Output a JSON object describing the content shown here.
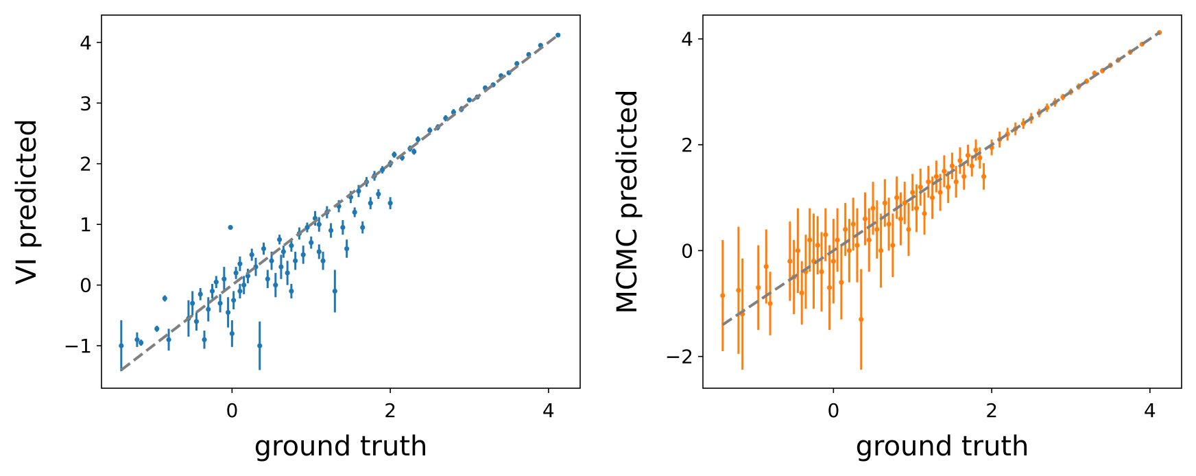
{
  "chart_data": [
    {
      "type": "scatter",
      "xlabel": "ground truth",
      "ylabel": "VI predicted",
      "xlim": [
        -1.65,
        4.4
      ],
      "ylim": [
        -1.7,
        4.45
      ],
      "xticks": [
        0,
        2,
        4
      ],
      "yticks": [
        -1,
        0,
        1,
        2,
        3,
        4
      ],
      "x_tick_labels": [
        "0",
        "2",
        "4"
      ],
      "y_tick_labels": [
        "−1",
        "0",
        "1",
        "2",
        "3",
        "4"
      ],
      "grid": false,
      "color": "#1f77b4",
      "identity_line": {
        "from": [
          -1.4,
          -1.4
        ],
        "to": [
          4.12,
          4.12
        ],
        "color": "#808080",
        "style": "dashed"
      },
      "series": [
        {
          "points": [
            {
              "x": -1.4,
              "y": -1.0,
              "err": 0.42
            },
            {
              "x": -1.2,
              "y": -0.9,
              "err": 0.12
            },
            {
              "x": -1.15,
              "y": -0.95,
              "err": 0.05
            },
            {
              "x": -0.95,
              "y": -0.72,
              "err": 0.05
            },
            {
              "x": -0.85,
              "y": -0.22,
              "err": 0.05
            },
            {
              "x": -0.8,
              "y": -0.9,
              "err": 0.18
            },
            {
              "x": -0.55,
              "y": -0.55,
              "err": 0.3
            },
            {
              "x": -0.5,
              "y": -0.3,
              "err": 0.2
            },
            {
              "x": -0.45,
              "y": -0.6,
              "err": 0.15
            },
            {
              "x": -0.4,
              "y": -0.15,
              "err": 0.1
            },
            {
              "x": -0.35,
              "y": -0.9,
              "err": 0.15
            },
            {
              "x": -0.3,
              "y": -0.4,
              "err": 0.2
            },
            {
              "x": -0.25,
              "y": -0.1,
              "err": 0.12
            },
            {
              "x": -0.2,
              "y": 0.05,
              "err": 0.1
            },
            {
              "x": -0.15,
              "y": -0.3,
              "err": 0.15
            },
            {
              "x": -0.1,
              "y": 0.1,
              "err": 0.2
            },
            {
              "x": -0.05,
              "y": -0.45,
              "err": 0.25
            },
            {
              "x": -0.02,
              "y": 0.95,
              "err": 0.03
            },
            {
              "x": 0.0,
              "y": -0.8,
              "err": 0.22
            },
            {
              "x": 0.02,
              "y": -0.25,
              "err": 0.15
            },
            {
              "x": 0.05,
              "y": 0.2,
              "err": 0.1
            },
            {
              "x": 0.1,
              "y": 0.35,
              "err": 0.12
            },
            {
              "x": 0.1,
              "y": -0.1,
              "err": 0.12
            },
            {
              "x": 0.15,
              "y": 0.0,
              "err": 0.15
            },
            {
              "x": 0.2,
              "y": 0.15,
              "err": 0.12
            },
            {
              "x": 0.25,
              "y": 0.5,
              "err": 0.1
            },
            {
              "x": 0.3,
              "y": 0.3,
              "err": 0.15
            },
            {
              "x": 0.35,
              "y": -1.0,
              "err": 0.4
            },
            {
              "x": 0.4,
              "y": 0.6,
              "err": 0.1
            },
            {
              "x": 0.45,
              "y": 0.1,
              "err": 0.15
            },
            {
              "x": 0.5,
              "y": 0.4,
              "err": 0.15
            },
            {
              "x": 0.55,
              "y": 0.0,
              "err": 0.2
            },
            {
              "x": 0.6,
              "y": 0.75,
              "err": 0.08
            },
            {
              "x": 0.62,
              "y": 0.3,
              "err": 0.2
            },
            {
              "x": 0.65,
              "y": 0.55,
              "err": 0.1
            },
            {
              "x": 0.7,
              "y": 0.2,
              "err": 0.2
            },
            {
              "x": 0.75,
              "y": 0.65,
              "err": 0.1
            },
            {
              "x": 0.75,
              "y": -0.1,
              "err": 0.12
            },
            {
              "x": 0.8,
              "y": 0.4,
              "err": 0.15
            },
            {
              "x": 0.85,
              "y": 0.85,
              "err": 0.1
            },
            {
              "x": 0.9,
              "y": 0.5,
              "err": 0.15
            },
            {
              "x": 0.95,
              "y": 0.95,
              "err": 0.08
            },
            {
              "x": 1.0,
              "y": 0.7,
              "err": 0.1
            },
            {
              "x": 1.05,
              "y": 1.1,
              "err": 0.12
            },
            {
              "x": 1.1,
              "y": 0.55,
              "err": 0.12
            },
            {
              "x": 1.1,
              "y": 1.0,
              "err": 0.12
            },
            {
              "x": 1.15,
              "y": 0.4,
              "err": 0.15
            },
            {
              "x": 1.2,
              "y": 1.2,
              "err": 0.1
            },
            {
              "x": 1.25,
              "y": 0.9,
              "err": 0.12
            },
            {
              "x": 1.3,
              "y": -0.1,
              "err": 0.35
            },
            {
              "x": 1.35,
              "y": 1.3,
              "err": 0.1
            },
            {
              "x": 1.4,
              "y": 0.95,
              "err": 0.12
            },
            {
              "x": 1.45,
              "y": 0.6,
              "err": 0.15
            },
            {
              "x": 1.5,
              "y": 1.45,
              "err": 0.1
            },
            {
              "x": 1.55,
              "y": 1.2,
              "err": 0.08
            },
            {
              "x": 1.6,
              "y": 1.55,
              "err": 0.1
            },
            {
              "x": 1.65,
              "y": 0.95,
              "err": 0.1
            },
            {
              "x": 1.7,
              "y": 1.7,
              "err": 0.08
            },
            {
              "x": 1.75,
              "y": 1.35,
              "err": 0.1
            },
            {
              "x": 1.8,
              "y": 1.8,
              "err": 0.08
            },
            {
              "x": 1.85,
              "y": 1.5,
              "err": 0.08
            },
            {
              "x": 1.9,
              "y": 1.9,
              "err": 0.06
            },
            {
              "x": 2.0,
              "y": 1.35,
              "err": 0.1
            },
            {
              "x": 2.0,
              "y": 2.0,
              "err": 0.06
            },
            {
              "x": 2.05,
              "y": 2.15,
              "err": 0.05
            },
            {
              "x": 2.15,
              "y": 2.1,
              "err": 0.05
            },
            {
              "x": 2.25,
              "y": 2.25,
              "err": 0.05
            },
            {
              "x": 2.3,
              "y": 2.2,
              "err": 0.05
            },
            {
              "x": 2.35,
              "y": 2.4,
              "err": 0.05
            },
            {
              "x": 2.5,
              "y": 2.55,
              "err": 0.05
            },
            {
              "x": 2.6,
              "y": 2.6,
              "err": 0.05
            },
            {
              "x": 2.7,
              "y": 2.75,
              "err": 0.05
            },
            {
              "x": 2.8,
              "y": 2.85,
              "err": 0.05
            },
            {
              "x": 2.9,
              "y": 2.9,
              "err": 0.05
            },
            {
              "x": 3.0,
              "y": 3.05,
              "err": 0.04
            },
            {
              "x": 3.1,
              "y": 3.1,
              "err": 0.04
            },
            {
              "x": 3.2,
              "y": 3.25,
              "err": 0.04
            },
            {
              "x": 3.3,
              "y": 3.3,
              "err": 0.04
            },
            {
              "x": 3.4,
              "y": 3.45,
              "err": 0.04
            },
            {
              "x": 3.5,
              "y": 3.5,
              "err": 0.04
            },
            {
              "x": 3.6,
              "y": 3.65,
              "err": 0.04
            },
            {
              "x": 3.75,
              "y": 3.8,
              "err": 0.04
            },
            {
              "x": 3.9,
              "y": 3.95,
              "err": 0.04
            },
            {
              "x": 4.12,
              "y": 4.12,
              "err": 0.03
            }
          ]
        }
      ]
    },
    {
      "type": "scatter",
      "xlabel": "ground truth",
      "ylabel": "MCMC predicted",
      "xlim": [
        -1.65,
        4.4
      ],
      "ylim": [
        -2.6,
        4.45
      ],
      "xticks": [
        0,
        2,
        4
      ],
      "yticks": [
        -2,
        0,
        2,
        4
      ],
      "x_tick_labels": [
        "0",
        "2",
        "4"
      ],
      "y_tick_labels": [
        "−2",
        "0",
        "2",
        "4"
      ],
      "grid": false,
      "color": "#ff7f0e",
      "identity_line": {
        "from": [
          -1.4,
          -1.4
        ],
        "to": [
          4.12,
          4.12
        ],
        "color": "#808080",
        "style": "dashed"
      },
      "series": [
        {
          "points": [
            {
              "x": -1.4,
              "y": -0.85,
              "err": 1.05
            },
            {
              "x": -1.2,
              "y": -0.75,
              "err": 1.2
            },
            {
              "x": -1.15,
              "y": -1.2,
              "err": 1.05
            },
            {
              "x": -0.95,
              "y": -0.7,
              "err": 0.8
            },
            {
              "x": -0.85,
              "y": -0.3,
              "err": 0.7
            },
            {
              "x": -0.8,
              "y": -1.0,
              "err": 0.6
            },
            {
              "x": -0.55,
              "y": -0.2,
              "err": 0.75
            },
            {
              "x": -0.5,
              "y": -0.5,
              "err": 0.7
            },
            {
              "x": -0.45,
              "y": 0.0,
              "err": 0.8
            },
            {
              "x": -0.4,
              "y": -0.8,
              "err": 0.6
            },
            {
              "x": -0.35,
              "y": -0.4,
              "err": 0.7
            },
            {
              "x": -0.3,
              "y": 0.2,
              "err": 0.6
            },
            {
              "x": -0.25,
              "y": -0.2,
              "err": 0.9
            },
            {
              "x": -0.2,
              "y": 0.1,
              "err": 0.55
            },
            {
              "x": -0.15,
              "y": -0.4,
              "err": 0.75
            },
            {
              "x": -0.1,
              "y": 0.3,
              "err": 0.5
            },
            {
              "x": -0.05,
              "y": -0.7,
              "err": 0.8
            },
            {
              "x": 0.0,
              "y": -0.2,
              "err": 0.8
            },
            {
              "x": 0.05,
              "y": 0.2,
              "err": 0.6
            },
            {
              "x": 0.1,
              "y": -0.6,
              "err": 0.7
            },
            {
              "x": 0.15,
              "y": 0.4,
              "err": 0.5
            },
            {
              "x": 0.2,
              "y": 0.0,
              "err": 0.6
            },
            {
              "x": 0.25,
              "y": 0.5,
              "err": 0.5
            },
            {
              "x": 0.3,
              "y": 0.1,
              "err": 0.7
            },
            {
              "x": 0.35,
              "y": -1.3,
              "err": 0.95
            },
            {
              "x": 0.4,
              "y": 0.6,
              "err": 0.5
            },
            {
              "x": 0.45,
              "y": 0.2,
              "err": 0.6
            },
            {
              "x": 0.5,
              "y": 0.8,
              "err": 0.5
            },
            {
              "x": 0.55,
              "y": 0.4,
              "err": 0.55
            },
            {
              "x": 0.6,
              "y": 0.0,
              "err": 0.7
            },
            {
              "x": 0.65,
              "y": 0.9,
              "err": 0.45
            },
            {
              "x": 0.7,
              "y": 0.5,
              "err": 0.5
            },
            {
              "x": 0.75,
              "y": 0.1,
              "err": 0.6
            },
            {
              "x": 0.8,
              "y": 1.0,
              "err": 0.4
            },
            {
              "x": 0.85,
              "y": 0.6,
              "err": 0.5
            },
            {
              "x": 0.9,
              "y": 0.9,
              "err": 0.4
            },
            {
              "x": 0.95,
              "y": 0.4,
              "err": 0.5
            },
            {
              "x": 1.0,
              "y": 1.1,
              "err": 0.35
            },
            {
              "x": 1.05,
              "y": 0.8,
              "err": 0.45
            },
            {
              "x": 1.1,
              "y": 1.2,
              "err": 0.35
            },
            {
              "x": 1.15,
              "y": 0.7,
              "err": 0.4
            },
            {
              "x": 1.2,
              "y": 1.3,
              "err": 0.3
            },
            {
              "x": 1.25,
              "y": 1.0,
              "err": 0.4
            },
            {
              "x": 1.3,
              "y": 1.4,
              "err": 0.3
            },
            {
              "x": 1.35,
              "y": 1.1,
              "err": 0.35
            },
            {
              "x": 1.4,
              "y": 1.5,
              "err": 0.3
            },
            {
              "x": 1.45,
              "y": 1.2,
              "err": 0.3
            },
            {
              "x": 1.5,
              "y": 1.6,
              "err": 0.25
            },
            {
              "x": 1.55,
              "y": 1.3,
              "err": 0.3
            },
            {
              "x": 1.6,
              "y": 1.7,
              "err": 0.25
            },
            {
              "x": 1.65,
              "y": 1.4,
              "err": 0.25
            },
            {
              "x": 1.7,
              "y": 1.8,
              "err": 0.2
            },
            {
              "x": 1.75,
              "y": 1.6,
              "err": 0.2
            },
            {
              "x": 1.8,
              "y": 1.9,
              "err": 0.2
            },
            {
              "x": 1.85,
              "y": 1.75,
              "err": 0.2
            },
            {
              "x": 1.9,
              "y": 1.4,
              "err": 0.25
            },
            {
              "x": 2.0,
              "y": 1.95,
              "err": 0.15
            },
            {
              "x": 2.1,
              "y": 2.1,
              "err": 0.15
            },
            {
              "x": 2.2,
              "y": 2.2,
              "err": 0.12
            },
            {
              "x": 2.3,
              "y": 2.3,
              "err": 0.12
            },
            {
              "x": 2.4,
              "y": 2.4,
              "err": 0.1
            },
            {
              "x": 2.5,
              "y": 2.5,
              "err": 0.1
            },
            {
              "x": 2.6,
              "y": 2.6,
              "err": 0.08
            },
            {
              "x": 2.7,
              "y": 2.7,
              "err": 0.08
            },
            {
              "x": 2.8,
              "y": 2.8,
              "err": 0.08
            },
            {
              "x": 2.9,
              "y": 2.9,
              "err": 0.06
            },
            {
              "x": 3.0,
              "y": 3.0,
              "err": 0.06
            },
            {
              "x": 3.1,
              "y": 3.1,
              "err": 0.06
            },
            {
              "x": 3.2,
              "y": 3.2,
              "err": 0.05
            },
            {
              "x": 3.3,
              "y": 3.35,
              "err": 0.05
            },
            {
              "x": 3.4,
              "y": 3.4,
              "err": 0.05
            },
            {
              "x": 3.5,
              "y": 3.5,
              "err": 0.05
            },
            {
              "x": 3.6,
              "y": 3.6,
              "err": 0.05
            },
            {
              "x": 3.75,
              "y": 3.75,
              "err": 0.05
            },
            {
              "x": 3.9,
              "y": 3.9,
              "err": 0.04
            },
            {
              "x": 4.12,
              "y": 4.12,
              "err": 0.03
            }
          ]
        }
      ]
    }
  ]
}
